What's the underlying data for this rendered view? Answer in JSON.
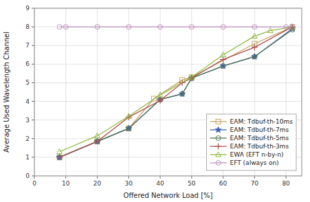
{
  "chart_data": {
    "type": "line",
    "xlabel": "Offered Network Load [%]",
    "ylabel": "Average Used Wavelength Channel",
    "xlim": [
      0,
      85
    ],
    "ylim": [
      0,
      9
    ],
    "xticks": [
      0,
      10,
      20,
      30,
      40,
      50,
      60,
      70,
      80
    ],
    "yticks": [
      0,
      1,
      2,
      3,
      4,
      5,
      6,
      7,
      8,
      9
    ],
    "grid": true,
    "legend": "lower right",
    "series": [
      {
        "name": "EAM: Tdbuf-th-10ms",
        "color": "#c8a464",
        "marker": "square",
        "x": [
          8,
          20,
          30,
          38,
          47,
          50,
          70,
          82
        ],
        "values": [
          1.0,
          1.85,
          2.55,
          4.15,
          5.15,
          5.3,
          7.1,
          8.0
        ]
      },
      {
        "name": "EAM: Tdbuf-th-7ms",
        "color": "#4060b0",
        "marker": "star",
        "x": [
          8,
          20,
          30,
          40,
          47,
          50,
          60,
          70,
          82
        ],
        "values": [
          1.0,
          1.85,
          2.55,
          4.1,
          4.4,
          5.25,
          5.9,
          6.4,
          7.9
        ]
      },
      {
        "name": "EAM: Tdbuf-th-5ms",
        "color": "#507850",
        "marker": "circle",
        "x": [
          8,
          20,
          30,
          40,
          47,
          50,
          60,
          70,
          82
        ],
        "values": [
          1.0,
          1.85,
          2.55,
          4.1,
          4.4,
          5.25,
          5.9,
          6.4,
          7.85
        ]
      },
      {
        "name": "EAM: Tdbuf-th-3ms",
        "color": "#b05050",
        "marker": "plus",
        "x": [
          8,
          20,
          30,
          40,
          47,
          50,
          60,
          70,
          82
        ],
        "values": [
          1.0,
          1.85,
          3.15,
          4.05,
          5.0,
          5.25,
          6.25,
          6.9,
          8.0
        ]
      },
      {
        "name": "EWA (EFT n-by-n)",
        "color": "#90b840",
        "marker": "triangle",
        "x": [
          8,
          20,
          30,
          40,
          50,
          60,
          70,
          75,
          82
        ],
        "values": [
          1.3,
          2.15,
          3.2,
          4.35,
          5.3,
          6.5,
          7.5,
          7.8,
          8.0
        ]
      },
      {
        "name": "EFT (always on)",
        "color": "#c090c0",
        "marker": "circle",
        "x": [
          8,
          10,
          20,
          30,
          40,
          50,
          60,
          70,
          80,
          82
        ],
        "values": [
          8.0,
          8.0,
          8.0,
          8.0,
          8.0,
          8.0,
          8.0,
          8.0,
          8.0,
          8.0
        ]
      }
    ]
  }
}
